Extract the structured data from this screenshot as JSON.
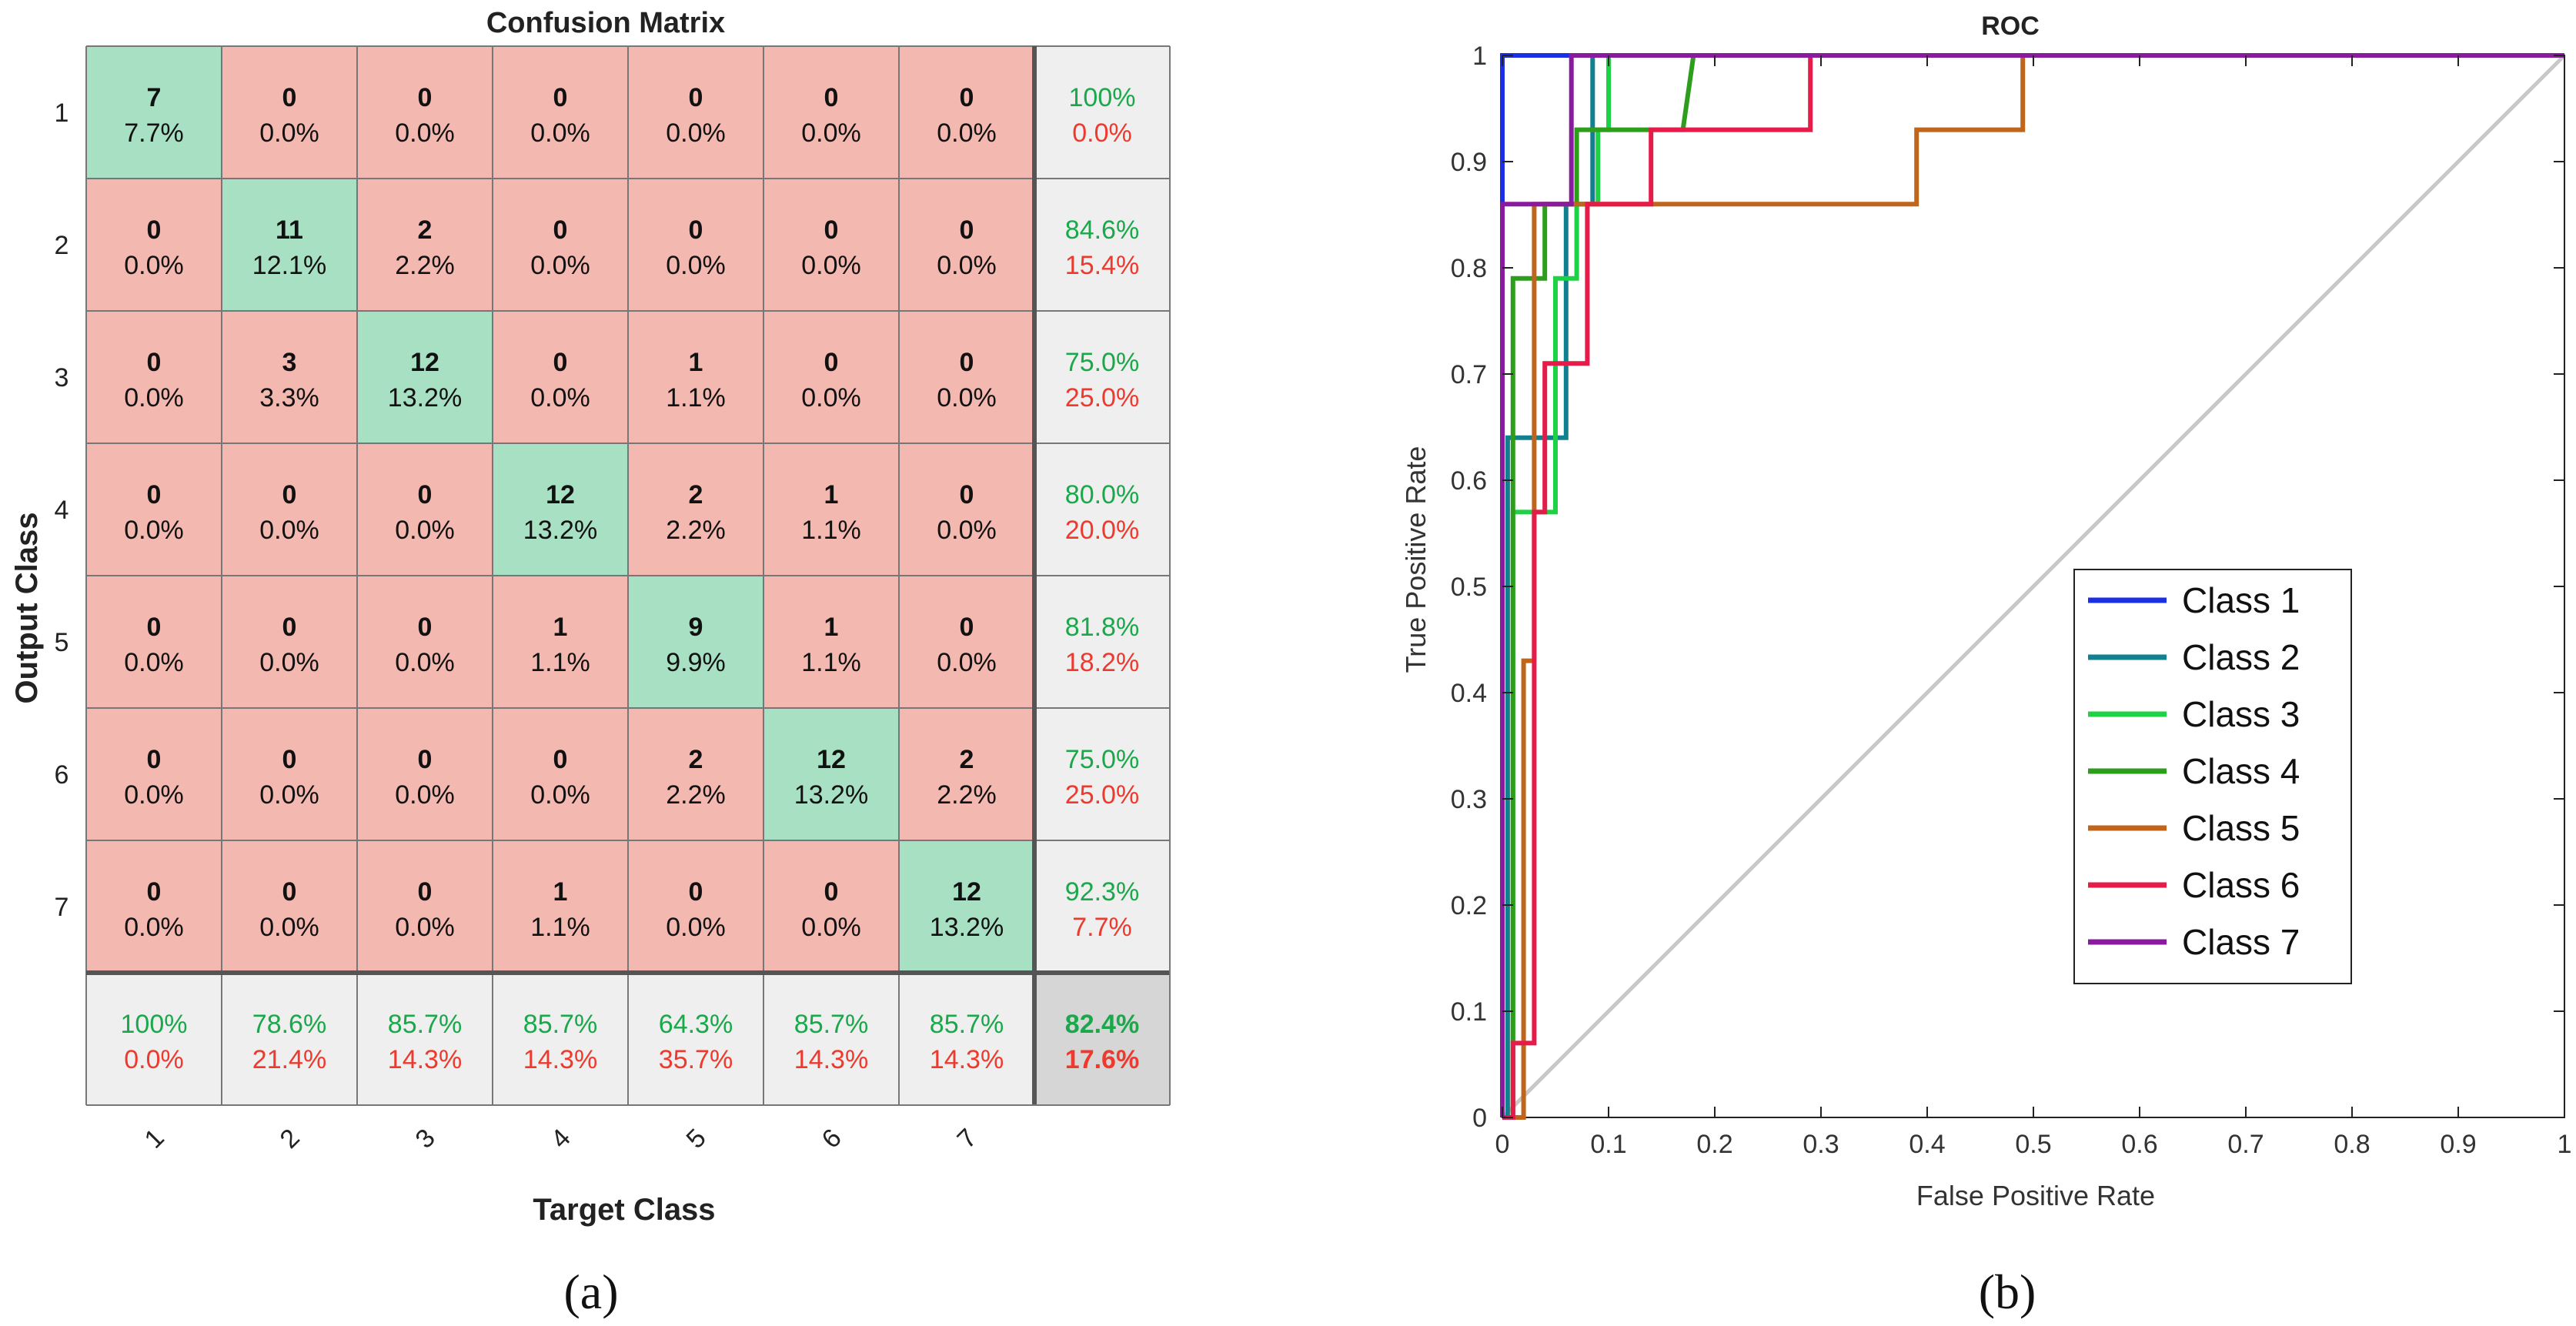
{
  "panel_labels": {
    "a": "(a)",
    "b": "(b)"
  },
  "colors": {
    "correct": "#a8e0c3",
    "incorrect": "#f3b8b0",
    "summary": "#efefef",
    "overall": "#d6d6d6",
    "green_text": "#1aa84b",
    "red_text": "#ee3a2e",
    "diagonal": "#c8c8c8"
  },
  "chart_data": [
    {
      "type": "heatmap",
      "title": "Confusion Matrix",
      "xlabel": "Target Class",
      "ylabel": "Output Class",
      "row_labels": [
        "1",
        "2",
        "3",
        "4",
        "5",
        "6",
        "7"
      ],
      "col_labels": [
        "1",
        "2",
        "3",
        "4",
        "5",
        "6",
        "7"
      ],
      "counts": [
        [
          7,
          0,
          0,
          0,
          0,
          0,
          0
        ],
        [
          0,
          11,
          2,
          0,
          0,
          0,
          0
        ],
        [
          0,
          3,
          12,
          0,
          1,
          0,
          0
        ],
        [
          0,
          0,
          0,
          12,
          2,
          1,
          0
        ],
        [
          0,
          0,
          0,
          1,
          9,
          1,
          0
        ],
        [
          0,
          0,
          0,
          0,
          2,
          12,
          2
        ],
        [
          0,
          0,
          0,
          1,
          0,
          0,
          12
        ]
      ],
      "percents": [
        [
          "7.7%",
          "0.0%",
          "0.0%",
          "0.0%",
          "0.0%",
          "0.0%",
          "0.0%"
        ],
        [
          "0.0%",
          "12.1%",
          "2.2%",
          "0.0%",
          "0.0%",
          "0.0%",
          "0.0%"
        ],
        [
          "0.0%",
          "3.3%",
          "13.2%",
          "0.0%",
          "1.1%",
          "0.0%",
          "0.0%"
        ],
        [
          "0.0%",
          "0.0%",
          "0.0%",
          "13.2%",
          "2.2%",
          "1.1%",
          "0.0%"
        ],
        [
          "0.0%",
          "0.0%",
          "0.0%",
          "1.1%",
          "9.9%",
          "1.1%",
          "0.0%"
        ],
        [
          "0.0%",
          "0.0%",
          "0.0%",
          "0.0%",
          "2.2%",
          "13.2%",
          "2.2%"
        ],
        [
          "0.0%",
          "0.0%",
          "0.0%",
          "1.1%",
          "0.0%",
          "0.0%",
          "13.2%"
        ]
      ],
      "row_summary": [
        [
          "100%",
          "0.0%"
        ],
        [
          "84.6%",
          "15.4%"
        ],
        [
          "75.0%",
          "25.0%"
        ],
        [
          "80.0%",
          "20.0%"
        ],
        [
          "81.8%",
          "18.2%"
        ],
        [
          "75.0%",
          "25.0%"
        ],
        [
          "92.3%",
          "7.7%"
        ]
      ],
      "col_summary": [
        [
          "100%",
          "0.0%"
        ],
        [
          "78.6%",
          "21.4%"
        ],
        [
          "85.7%",
          "14.3%"
        ],
        [
          "85.7%",
          "14.3%"
        ],
        [
          "64.3%",
          "35.7%"
        ],
        [
          "85.7%",
          "14.3%"
        ],
        [
          "85.7%",
          "14.3%"
        ]
      ],
      "overall": [
        "82.4%",
        "17.6%"
      ]
    },
    {
      "type": "line",
      "title": "ROC",
      "xlabel": "False Positive Rate",
      "ylabel": "True Positive Rate",
      "xlim": [
        0,
        1
      ],
      "ylim": [
        0,
        1
      ],
      "x_ticks": [
        "0",
        "0.1",
        "0.2",
        "0.3",
        "0.4",
        "0.5",
        "0.6",
        "0.7",
        "0.8",
        "0.9",
        "1"
      ],
      "y_ticks": [
        "0",
        "0.1",
        "0.2",
        "0.3",
        "0.4",
        "0.5",
        "0.6",
        "0.7",
        "0.8",
        "0.9",
        "1"
      ],
      "legend_position": "center-right",
      "series": [
        {
          "name": "Class 1",
          "color": "#1a2fe6",
          "x": [
            0,
            0,
            0.08,
            0.08,
            1
          ],
          "y": [
            0,
            1,
            1,
            1,
            1
          ]
        },
        {
          "name": "Class 2",
          "color": "#11808f",
          "x": [
            0,
            0.005,
            0.005,
            0.06,
            0.06,
            0.075,
            0.075,
            0.085,
            0.085,
            1
          ],
          "y": [
            0,
            0,
            0.64,
            0.64,
            0.86,
            0.86,
            0.86,
            0.86,
            1,
            1
          ]
        },
        {
          "name": "Class 3",
          "color": "#1ed246",
          "x": [
            0,
            0.01,
            0.01,
            0.05,
            0.05,
            0.07,
            0.07,
            0.09,
            0.09,
            0.1,
            0.1,
            1
          ],
          "y": [
            0,
            0,
            0.57,
            0.57,
            0.79,
            0.79,
            0.86,
            0.86,
            0.93,
            0.93,
            1,
            1
          ]
        },
        {
          "name": "Class 4",
          "color": "#2c9e1c",
          "x": [
            0,
            0.01,
            0.01,
            0.04,
            0.04,
            0.07,
            0.07,
            0.17,
            0.18,
            1
          ],
          "y": [
            0,
            0,
            0.79,
            0.79,
            0.86,
            0.86,
            0.93,
            0.93,
            1,
            1
          ]
        },
        {
          "name": "Class 5",
          "color": "#c0651c",
          "x": [
            0,
            0.02,
            0.02,
            0.03,
            0.03,
            0.14,
            0.14,
            0.39,
            0.39,
            0.49,
            0.49,
            1
          ],
          "y": [
            0,
            0,
            0.43,
            0.43,
            0.86,
            0.86,
            0.86,
            0.86,
            0.93,
            0.93,
            1,
            1
          ]
        },
        {
          "name": "Class 6",
          "color": "#e51c4a",
          "x": [
            0,
            0.01,
            0.01,
            0.03,
            0.03,
            0.04,
            0.04,
            0.08,
            0.08,
            0.14,
            0.14,
            0.29,
            0.29,
            1
          ],
          "y": [
            0,
            0,
            0.07,
            0.07,
            0.57,
            0.57,
            0.71,
            0.71,
            0.86,
            0.86,
            0.93,
            0.93,
            1,
            1
          ]
        },
        {
          "name": "Class 7",
          "color": "#8a1a9e",
          "x": [
            0,
            0,
            0.065,
            0.065,
            1
          ],
          "y": [
            0,
            0.86,
            0.86,
            1,
            1
          ]
        }
      ]
    }
  ]
}
